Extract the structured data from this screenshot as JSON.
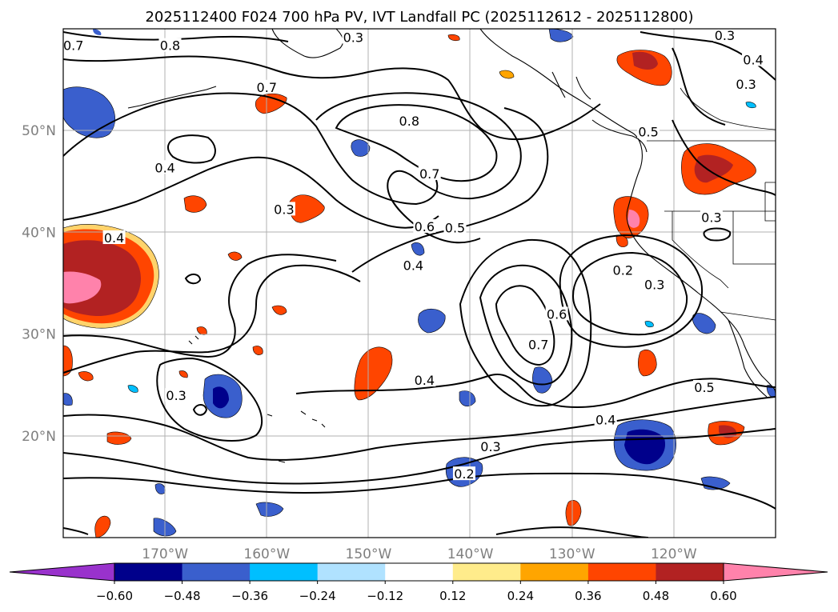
{
  "title": "2025112400 F024 700 hPa PV, IVT Landfall PC (2025112612 - 2025112800)",
  "map": {
    "lon_range": [
      -180,
      -110
    ],
    "lat_range": [
      10,
      60
    ],
    "lon_ticks": [
      {
        "value": -170,
        "label": "170°W"
      },
      {
        "value": -160,
        "label": "160°W"
      },
      {
        "value": -150,
        "label": "150°W"
      },
      {
        "value": -140,
        "label": "140°W"
      },
      {
        "value": -130,
        "label": "130°W"
      },
      {
        "value": -120,
        "label": "120°W"
      }
    ],
    "lat_ticks": [
      {
        "value": 20,
        "label": "20°N"
      },
      {
        "value": 30,
        "label": "30°N"
      },
      {
        "value": 40,
        "label": "40°N"
      },
      {
        "value": 50,
        "label": "50°N"
      }
    ],
    "grid": true,
    "contour_labels": [
      {
        "text": "0.7",
        "lon": -179,
        "lat": 58.3
      },
      {
        "text": "0.8",
        "lon": -169.5,
        "lat": 58.3
      },
      {
        "text": "0.3",
        "lon": -151.5,
        "lat": 59.1
      },
      {
        "text": "0.3",
        "lon": -115,
        "lat": 59.3
      },
      {
        "text": "0.4",
        "lon": -112.2,
        "lat": 56.9
      },
      {
        "text": "0.3",
        "lon": -112.9,
        "lat": 54.5
      },
      {
        "text": "0.7",
        "lon": -160,
        "lat": 54.2
      },
      {
        "text": "0.8",
        "lon": -146,
        "lat": 50.9
      },
      {
        "text": "0.5",
        "lon": -122.5,
        "lat": 49.8
      },
      {
        "text": "0.4",
        "lon": -170,
        "lat": 46.3
      },
      {
        "text": "0.7",
        "lon": -144,
        "lat": 45.7
      },
      {
        "text": "0.3",
        "lon": -158.3,
        "lat": 42.2
      },
      {
        "text": "0.3",
        "lon": -116.3,
        "lat": 41.4
      },
      {
        "text": "0.6",
        "lon": -144.5,
        "lat": 40.5
      },
      {
        "text": "0.5",
        "lon": -141.5,
        "lat": 40.4
      },
      {
        "text": "0.4",
        "lon": -175,
        "lat": 39.4
      },
      {
        "text": "0.4",
        "lon": -145.6,
        "lat": 36.7
      },
      {
        "text": "0.2",
        "lon": -125,
        "lat": 36.2
      },
      {
        "text": "0.3",
        "lon": -121.9,
        "lat": 34.8
      },
      {
        "text": "0.6",
        "lon": -131.5,
        "lat": 31.9
      },
      {
        "text": "0.7",
        "lon": -133.3,
        "lat": 28.9
      },
      {
        "text": "0.4",
        "lon": -144.5,
        "lat": 25.4
      },
      {
        "text": "0.5",
        "lon": -117,
        "lat": 24.7
      },
      {
        "text": "0.3",
        "lon": -168.9,
        "lat": 23.9
      },
      {
        "text": "0.4",
        "lon": -126.7,
        "lat": 21.5
      },
      {
        "text": "0.3",
        "lon": -138,
        "lat": 18.9
      },
      {
        "text": "0.2",
        "lon": -140.6,
        "lat": 16.2
      }
    ]
  },
  "colorbar": {
    "extend": "both",
    "levels": [
      -0.6,
      -0.48,
      -0.36,
      -0.24,
      -0.12,
      0.12,
      0.24,
      0.36,
      0.48,
      0.6
    ],
    "tick_labels": [
      "−0.60",
      "−0.48",
      "−0.36",
      "−0.24",
      "−0.12",
      "0.12",
      "0.24",
      "0.36",
      "0.48",
      "0.60"
    ],
    "colors": [
      "#9932cc",
      "#00008b",
      "#3a5fcd",
      "#00bfff",
      "#b0e2ff",
      "#ffffff",
      "#ffec8b",
      "#ffa500",
      "#ff4500",
      "#b22222",
      "#ff82ab"
    ]
  }
}
